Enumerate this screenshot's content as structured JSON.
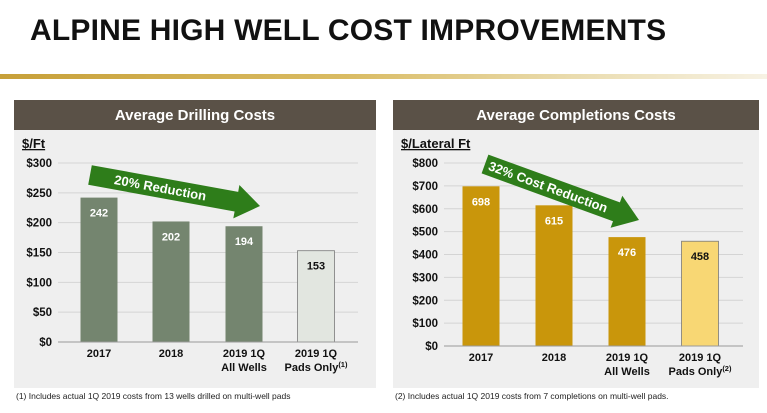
{
  "slide": {
    "title": "ALPINE HIGH WELL COST IMPROVEMENTS"
  },
  "footnotes": {
    "drilling": "(1) Includes actual 1Q 2019 costs from 13 wells drilled on multi-well pads",
    "completions": "(2) Includes actual 1Q 2019 costs from 7 completions on multi-well pads."
  },
  "colors": {
    "drilling_bar": "#74856f",
    "drilling_highlight": "#e2e6e0",
    "completions_bar": "#c9960b",
    "completions_highlight": "#f8d774",
    "arrow": "#2e7d1a",
    "header": "#5a5147"
  },
  "chart_data": [
    {
      "type": "bar",
      "title": "Average Drilling Costs",
      "ylabel": "$/Ft",
      "categories": [
        "2017",
        "2018",
        "2019 1Q\nAll Wells",
        "2019 1Q\nPads Only(1)"
      ],
      "category_lines": [
        [
          "2017"
        ],
        [
          "2018"
        ],
        [
          "2019 1Q",
          "All Wells"
        ],
        [
          "2019 1Q",
          "Pads Only",
          "(1)"
        ]
      ],
      "values": [
        242,
        202,
        194,
        153
      ],
      "highlight_index": 3,
      "ylim": [
        0,
        300
      ],
      "yticks": [
        0,
        50,
        100,
        150,
        200,
        250,
        300
      ],
      "ytick_labels": [
        "$0",
        "$50",
        "$100",
        "$150",
        "$200",
        "$250",
        "$300"
      ],
      "grid": true,
      "annotation": "20% Reduction"
    },
    {
      "type": "bar",
      "title": "Average Completions Costs",
      "ylabel": "$/Lateral Ft",
      "categories": [
        "2017",
        "2018",
        "2019 1Q\nAll Wells",
        "2019 1Q\nPads Only(2)"
      ],
      "category_lines": [
        [
          "2017"
        ],
        [
          "2018"
        ],
        [
          "2019 1Q",
          "All Wells"
        ],
        [
          "2019 1Q",
          "Pads Only",
          "(2)"
        ]
      ],
      "values": [
        698,
        615,
        476,
        458
      ],
      "highlight_index": 3,
      "ylim": [
        0,
        800
      ],
      "yticks": [
        0,
        100,
        200,
        300,
        400,
        500,
        600,
        700,
        800
      ],
      "ytick_labels": [
        "$0",
        "$100",
        "$200",
        "$300",
        "$400",
        "$500",
        "$600",
        "$700",
        "$800"
      ],
      "grid": true,
      "annotation": "32% Cost Reduction"
    }
  ]
}
